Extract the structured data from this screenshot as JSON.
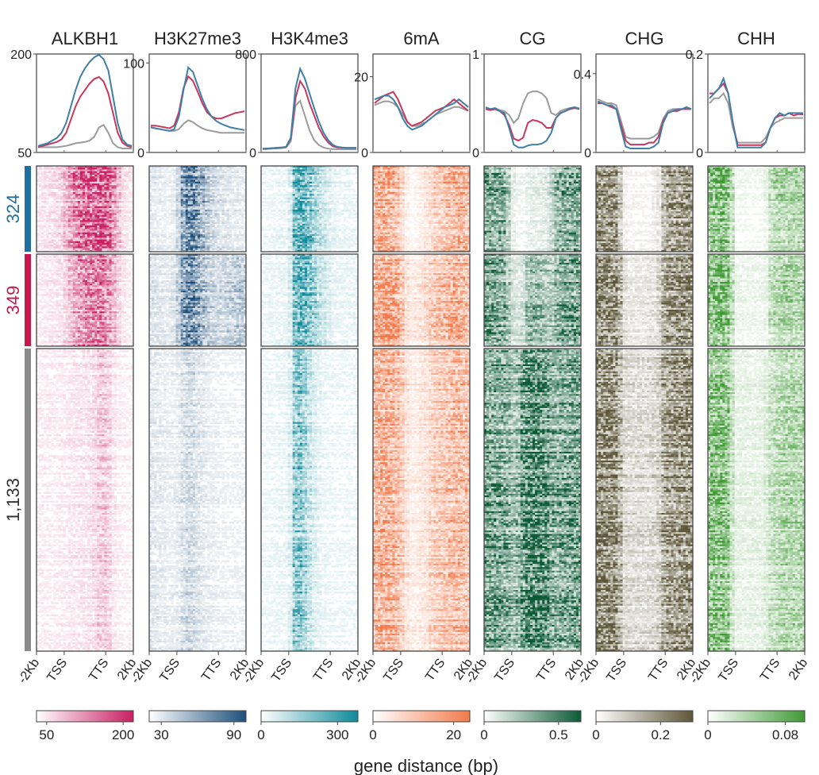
{
  "chart_data": {
    "type": "heatmap",
    "xlabel": "gene distance (bp)",
    "x_ticks": [
      "-2Kb",
      "TSS",
      "TTS",
      "2Kb"
    ],
    "x_positions": [
      -2000,
      0,
      3000,
      5000
    ],
    "clusters": [
      {
        "label": "324",
        "n_genes": 324,
        "color": "#1f6fa0"
      },
      {
        "label": "349",
        "n_genes": 349,
        "color": "#c8174a"
      },
      {
        "label": "1,133",
        "n_genes": 1133,
        "color": "#8a8a8a"
      }
    ],
    "line_colors": [
      "#3f7fa8",
      "#c8385d",
      "#9b9b9b"
    ],
    "tracks": [
      {
        "name": "ALKBH1",
        "color": "#c81e62",
        "ylim": [
          50,
          200
        ],
        "y_ticks": [
          {
            "v": 200,
            "label": "200"
          },
          {
            "v": 50,
            "label": "50"
          }
        ],
        "colorbar": {
          "range": [
            30,
            220
          ],
          "ticks": [
            {
              "v": 50,
              "label": "50"
            },
            {
              "v": 200,
              "label": "200"
            }
          ]
        },
        "profiles": [
          [
            60,
            62,
            64,
            68,
            72,
            80,
            95,
            120,
            145,
            165,
            178,
            188,
            195,
            200,
            192,
            175,
            135,
            95,
            70,
            62,
            60
          ],
          [
            58,
            60,
            62,
            64,
            66,
            70,
            80,
            100,
            120,
            135,
            145,
            155,
            162,
            165,
            158,
            140,
            110,
            80,
            65,
            60,
            58
          ],
          [
            58,
            58,
            58,
            58,
            58,
            59,
            60,
            62,
            64,
            65,
            66,
            68,
            74,
            88,
            92,
            80,
            64,
            58,
            56,
            56,
            56
          ]
        ]
      },
      {
        "name": "H3K27me3",
        "color": "#1d4e7a",
        "ylim": [
          0,
          110
        ],
        "y_ticks": [
          {
            "v": 100,
            "label": "100"
          },
          {
            "v": 0,
            "label": "0"
          }
        ],
        "colorbar": {
          "range": [
            20,
            100
          ],
          "ticks": [
            {
              "v": 30,
              "label": "30"
            },
            {
              "v": 90,
              "label": "90"
            }
          ]
        },
        "profiles": [
          [
            28,
            27,
            26,
            25,
            24,
            26,
            40,
            70,
            95,
            90,
            75,
            60,
            48,
            40,
            35,
            32,
            30,
            28,
            27,
            26,
            25
          ],
          [
            30,
            30,
            29,
            28,
            27,
            30,
            45,
            72,
            85,
            80,
            68,
            55,
            45,
            40,
            38,
            38,
            40,
            42,
            44,
            45,
            46
          ],
          [
            28,
            27,
            26,
            25,
            24,
            24,
            26,
            32,
            36,
            34,
            30,
            27,
            25,
            24,
            23,
            22,
            22,
            22,
            22,
            22,
            22
          ]
        ]
      },
      {
        "name": "H3K4me3",
        "color": "#0e8a9a",
        "ylim": [
          0,
          800
        ],
        "y_ticks": [
          {
            "v": 800,
            "label": "800"
          },
          {
            "v": 0,
            "label": "0"
          }
        ],
        "colorbar": {
          "range": [
            0,
            380
          ],
          "ticks": [
            {
              "v": 0,
              "label": "0"
            },
            {
              "v": 300,
              "label": "300"
            }
          ]
        },
        "profiles": [
          [
            30,
            32,
            35,
            38,
            40,
            45,
            120,
            520,
            680,
            600,
            480,
            360,
            250,
            160,
            100,
            60,
            45,
            40,
            38,
            38,
            38
          ],
          [
            30,
            32,
            35,
            38,
            40,
            45,
            110,
            440,
            580,
            520,
            400,
            300,
            200,
            130,
            80,
            50,
            40,
            38,
            36,
            36,
            36
          ],
          [
            25,
            27,
            30,
            32,
            35,
            40,
            90,
            380,
            420,
            300,
            180,
            100,
            60,
            40,
            30,
            28,
            26,
            25,
            25,
            25,
            25
          ]
        ]
      },
      {
        "name": "6mA",
        "color": "#f27a4b",
        "ylim": [
          0,
          26
        ],
        "y_ticks": [
          {
            "v": 20,
            "label": "20"
          },
          {
            "v": 0,
            "label": "0"
          }
        ],
        "colorbar": {
          "range": [
            0,
            24
          ],
          "ticks": [
            {
              "v": 0,
              "label": "0"
            },
            {
              "v": 20,
              "label": "20"
            }
          ]
        },
        "profiles": [
          [
            14,
            14.5,
            15,
            15,
            14,
            12,
            9,
            7,
            6,
            6.5,
            7,
            8,
            9,
            10,
            11,
            12,
            12.5,
            13,
            14,
            13,
            12
          ],
          [
            13,
            14,
            15,
            15.5,
            16,
            14,
            11,
            8,
            7,
            7.5,
            8,
            9,
            10,
            11,
            11.5,
            12,
            13,
            14,
            13,
            12,
            11
          ],
          [
            12.5,
            13,
            13.5,
            13.5,
            13,
            12,
            10,
            8,
            7,
            7,
            7.5,
            8,
            9,
            10,
            10.5,
            11,
            11.5,
            12,
            12,
            11.5,
            11
          ]
        ]
      },
      {
        "name": "CG",
        "color": "#0b5a36",
        "ylim": [
          0,
          1
        ],
        "y_ticks": [
          {
            "v": 1,
            "label": "1"
          },
          {
            "v": 0,
            "label": "0"
          }
        ],
        "colorbar": {
          "range": [
            0,
            0.65
          ],
          "ticks": [
            {
              "v": 0,
              "label": "0"
            },
            {
              "v": 0.5,
              "label": "0.5"
            }
          ]
        },
        "profiles": [
          [
            0.46,
            0.44,
            0.45,
            0.42,
            0.4,
            0.25,
            0.08,
            0.05,
            0.05,
            0.07,
            0.08,
            0.08,
            0.09,
            0.12,
            0.2,
            0.35,
            0.4,
            0.42,
            0.45,
            0.46,
            0.44
          ],
          [
            0.44,
            0.43,
            0.44,
            0.42,
            0.38,
            0.28,
            0.14,
            0.12,
            0.15,
            0.3,
            0.33,
            0.32,
            0.3,
            0.25,
            0.25,
            0.35,
            0.4,
            0.42,
            0.44,
            0.45,
            0.44
          ],
          [
            0.45,
            0.44,
            0.45,
            0.43,
            0.42,
            0.38,
            0.3,
            0.35,
            0.5,
            0.6,
            0.62,
            0.62,
            0.6,
            0.55,
            0.4,
            0.38,
            0.42,
            0.44,
            0.45,
            0.46,
            0.45
          ]
        ]
      },
      {
        "name": "CHG",
        "color": "#5e5638",
        "ylim": [
          0,
          0.5
        ],
        "y_ticks": [
          {
            "v": 0.4,
            "label": "0.4"
          },
          {
            "v": 0,
            "label": "0"
          }
        ],
        "colorbar": {
          "range": [
            0,
            0.3
          ],
          "ticks": [
            {
              "v": 0,
              "label": "0"
            },
            {
              "v": 0.2,
              "label": "0.2"
            }
          ]
        },
        "profiles": [
          [
            0.26,
            0.25,
            0.24,
            0.24,
            0.22,
            0.12,
            0.03,
            0.02,
            0.02,
            0.02,
            0.02,
            0.02,
            0.03,
            0.05,
            0.15,
            0.2,
            0.21,
            0.22,
            0.22,
            0.23,
            0.22
          ],
          [
            0.25,
            0.25,
            0.24,
            0.23,
            0.22,
            0.14,
            0.06,
            0.04,
            0.04,
            0.04,
            0.04,
            0.05,
            0.05,
            0.08,
            0.16,
            0.2,
            0.21,
            0.21,
            0.22,
            0.22,
            0.22
          ],
          [
            0.27,
            0.26,
            0.25,
            0.25,
            0.24,
            0.16,
            0.08,
            0.07,
            0.07,
            0.07,
            0.07,
            0.07,
            0.08,
            0.1,
            0.17,
            0.21,
            0.22,
            0.22,
            0.22,
            0.23,
            0.22
          ]
        ]
      },
      {
        "name": "CHH",
        "color": "#3f9a34",
        "ylim": [
          0,
          0.2
        ],
        "y_ticks": [
          {
            "v": 0.2,
            "label": "0.2"
          },
          {
            "v": 0,
            "label": "0"
          }
        ],
        "colorbar": {
          "range": [
            0,
            0.1
          ],
          "ticks": [
            {
              "v": 0,
              "label": "0"
            },
            {
              "v": 0.08,
              "label": "0.08"
            }
          ]
        },
        "profiles": [
          [
            0.11,
            0.12,
            0.13,
            0.15,
            0.12,
            0.06,
            0.01,
            0.01,
            0.01,
            0.01,
            0.01,
            0.01,
            0.02,
            0.05,
            0.07,
            0.08,
            0.075,
            0.08,
            0.08,
            0.08,
            0.08
          ],
          [
            0.12,
            0.12,
            0.13,
            0.14,
            0.12,
            0.06,
            0.015,
            0.015,
            0.015,
            0.015,
            0.015,
            0.015,
            0.02,
            0.05,
            0.07,
            0.075,
            0.075,
            0.08,
            0.075,
            0.078,
            0.077
          ],
          [
            0.1,
            0.11,
            0.11,
            0.12,
            0.1,
            0.05,
            0.02,
            0.02,
            0.02,
            0.02,
            0.02,
            0.02,
            0.03,
            0.05,
            0.06,
            0.065,
            0.07,
            0.07,
            0.07,
            0.07,
            0.07
          ]
        ]
      }
    ]
  }
}
